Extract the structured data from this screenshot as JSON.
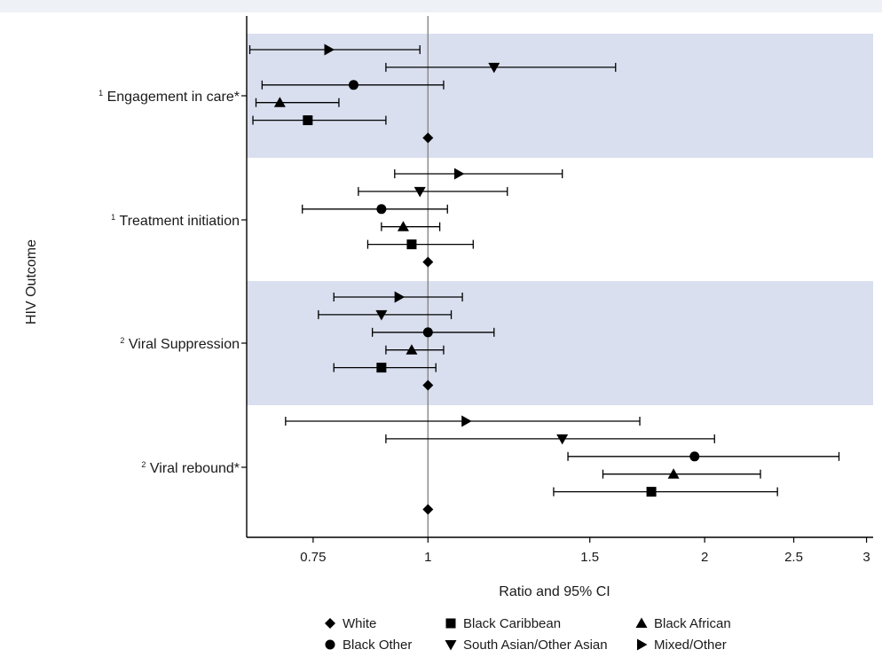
{
  "chart_data": {
    "type": "forest",
    "xlabel": "Ratio and 95% CI",
    "ylabel": "HIV Outcome",
    "x_scale": "log",
    "xlim": [
      0.635,
      3.05
    ],
    "xticks": [
      0.75,
      1,
      1.5,
      2,
      2.5,
      3
    ],
    "xtick_labels": [
      "0.75",
      "1",
      "1.5",
      "2",
      "2.5",
      "3"
    ],
    "reference_line": 1,
    "legend_position": "bottom",
    "groups": [
      {
        "label": "Engagement in care*",
        "superscript": "1",
        "shaded": true,
        "rows": [
          {
            "series": "Mixed/Other",
            "estimate": 0.78,
            "lower": 0.64,
            "upper": 0.98
          },
          {
            "series": "South Asian/Other Asian",
            "estimate": 1.18,
            "lower": 0.9,
            "upper": 1.6
          },
          {
            "series": "Black Other",
            "estimate": 0.83,
            "lower": 0.66,
            "upper": 1.04
          },
          {
            "series": "Black African",
            "estimate": 0.69,
            "lower": 0.65,
            "upper": 0.8
          },
          {
            "series": "Black Caribbean",
            "estimate": 0.74,
            "lower": 0.645,
            "upper": 0.9
          },
          {
            "series": "White",
            "estimate": 1.0,
            "lower": null,
            "upper": null
          }
        ]
      },
      {
        "label": "Treatment initiation",
        "superscript": "1",
        "shaded": false,
        "rows": [
          {
            "series": "Mixed/Other",
            "estimate": 1.08,
            "lower": 0.92,
            "upper": 1.4
          },
          {
            "series": "South Asian/Other Asian",
            "estimate": 0.98,
            "lower": 0.84,
            "upper": 1.22
          },
          {
            "series": "Black Other",
            "estimate": 0.89,
            "lower": 0.73,
            "upper": 1.05
          },
          {
            "series": "Black African",
            "estimate": 0.94,
            "lower": 0.89,
            "upper": 1.03
          },
          {
            "series": "Black Caribbean",
            "estimate": 0.96,
            "lower": 0.86,
            "upper": 1.12
          },
          {
            "series": "White",
            "estimate": 1.0,
            "lower": null,
            "upper": null
          }
        ]
      },
      {
        "label": "Viral Suppression",
        "superscript": "2",
        "shaded": true,
        "rows": [
          {
            "series": "Mixed/Other",
            "estimate": 0.93,
            "lower": 0.79,
            "upper": 1.09
          },
          {
            "series": "South Asian/Other Asian",
            "estimate": 0.89,
            "lower": 0.76,
            "upper": 1.06
          },
          {
            "series": "Black Other",
            "estimate": 1.0,
            "lower": 0.87,
            "upper": 1.18
          },
          {
            "series": "Black African",
            "estimate": 0.96,
            "lower": 0.9,
            "upper": 1.04
          },
          {
            "series": "Black Caribbean",
            "estimate": 0.89,
            "lower": 0.79,
            "upper": 1.02
          },
          {
            "series": "White",
            "estimate": 1.0,
            "lower": null,
            "upper": null
          }
        ]
      },
      {
        "label": "Viral rebound*",
        "superscript": "2",
        "shaded": false,
        "rows": [
          {
            "series": "Mixed/Other",
            "estimate": 1.1,
            "lower": 0.7,
            "upper": 1.7
          },
          {
            "series": "South Asian/Other Asian",
            "estimate": 1.4,
            "lower": 0.9,
            "upper": 2.05
          },
          {
            "series": "Black Other",
            "estimate": 1.95,
            "lower": 1.42,
            "upper": 2.8
          },
          {
            "series": "Black African",
            "estimate": 1.85,
            "lower": 1.55,
            "upper": 2.3
          },
          {
            "series": "Black Caribbean",
            "estimate": 1.75,
            "lower": 1.37,
            "upper": 2.4
          },
          {
            "series": "White",
            "estimate": 1.0,
            "lower": null,
            "upper": null
          }
        ]
      }
    ],
    "legend": [
      {
        "name": "White",
        "marker": "diamond"
      },
      {
        "name": "Black Caribbean",
        "marker": "square"
      },
      {
        "name": "Black African",
        "marker": "triangle-up"
      },
      {
        "name": "Black Other",
        "marker": "circle"
      },
      {
        "name": "South Asian/Other Asian",
        "marker": "triangle-down"
      },
      {
        "name": "Mixed/Other",
        "marker": "triangle-right"
      }
    ],
    "colors": {
      "shade": "#d9dfee",
      "marker": "#000000",
      "reference": "#888888",
      "axis": "#000000"
    }
  }
}
